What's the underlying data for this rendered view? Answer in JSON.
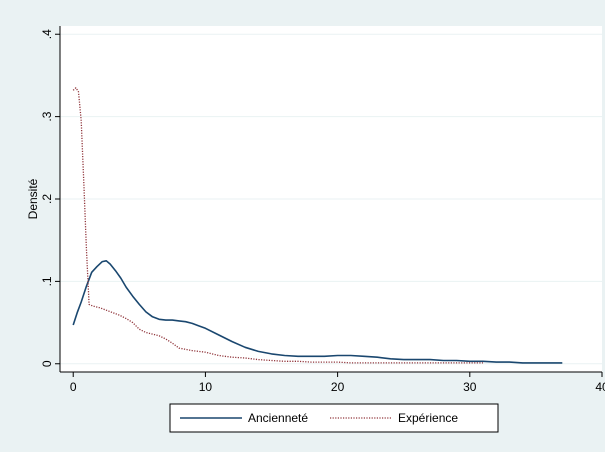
{
  "chart_data": {
    "type": "line",
    "title": "",
    "xlabel": "",
    "ylabel": "Densité",
    "xlim": [
      -1,
      40
    ],
    "ylim": [
      -0.01,
      0.41
    ],
    "xticks": [
      0,
      10,
      20,
      30,
      40
    ],
    "xtick_labels": [
      "0",
      "10",
      "20",
      "30",
      "40"
    ],
    "yticks": [
      0,
      0.1,
      0.2,
      0.3,
      0.4
    ],
    "ytick_labels": [
      "0",
      ".1",
      ".2",
      ".3",
      ".4"
    ],
    "grid": "horizontal",
    "legend_position": "bottom",
    "series": [
      {
        "name": "Ancienneté",
        "color": "#1a476f",
        "style": "solid",
        "x": [
          0,
          0.3,
          0.6,
          1,
          1.4,
          1.8,
          2.2,
          2.5,
          2.8,
          3.2,
          3.6,
          4,
          4.5,
          5,
          5.5,
          6,
          6.5,
          7,
          7.5,
          8,
          8.5,
          9,
          9.5,
          10,
          11,
          12,
          13,
          14,
          15,
          16,
          17,
          18,
          19,
          20,
          21,
          22,
          23,
          24,
          25,
          26,
          27,
          28,
          29,
          30,
          31,
          32,
          33,
          34,
          35,
          36,
          37
        ],
        "y": [
          0.047,
          0.062,
          0.075,
          0.094,
          0.111,
          0.118,
          0.124,
          0.125,
          0.121,
          0.113,
          0.104,
          0.093,
          0.082,
          0.072,
          0.063,
          0.057,
          0.054,
          0.053,
          0.053,
          0.052,
          0.051,
          0.049,
          0.046,
          0.043,
          0.035,
          0.027,
          0.02,
          0.015,
          0.012,
          0.01,
          0.009,
          0.009,
          0.009,
          0.01,
          0.01,
          0.009,
          0.008,
          0.006,
          0.005,
          0.005,
          0.005,
          0.004,
          0.004,
          0.003,
          0.003,
          0.002,
          0.002,
          0.001,
          0.001,
          0.001,
          0.001
        ]
      },
      {
        "name": "Expérience",
        "color": "#90353b",
        "style": "dotted",
        "x": [
          0,
          0.2,
          0.4,
          0.6,
          0.8,
          1,
          1.2,
          1.5,
          2,
          2.5,
          3,
          3.5,
          4,
          4.5,
          5,
          5.5,
          6,
          6.5,
          7,
          7.5,
          8,
          9,
          10,
          11,
          12,
          13,
          14,
          15,
          16,
          17,
          18,
          19,
          20,
          21,
          22,
          23,
          24,
          25,
          26,
          27,
          28,
          29,
          30,
          31
        ],
        "y": [
          0.332,
          0.335,
          0.33,
          0.295,
          0.22,
          0.14,
          0.072,
          0.07,
          0.068,
          0.065,
          0.062,
          0.059,
          0.055,
          0.05,
          0.042,
          0.038,
          0.036,
          0.034,
          0.03,
          0.025,
          0.019,
          0.016,
          0.014,
          0.01,
          0.008,
          0.007,
          0.005,
          0.004,
          0.003,
          0.003,
          0.002,
          0.002,
          0.002,
          0.001,
          0.001,
          0.001,
          0.001,
          0.001,
          0.001,
          0.001,
          0.001,
          0.001,
          0.001,
          0.001
        ]
      }
    ]
  }
}
